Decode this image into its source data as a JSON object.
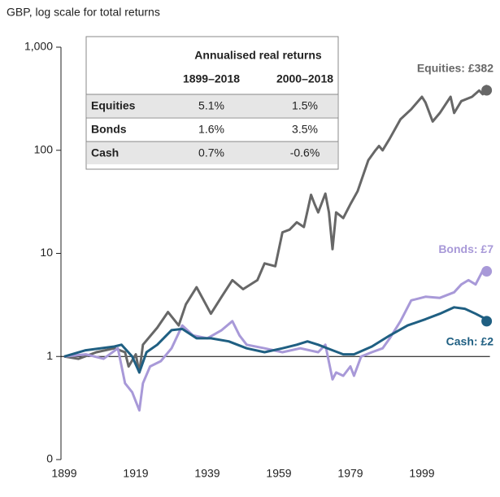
{
  "chart_data": {
    "type": "line",
    "ylabel": "GBP, log scale for total returns",
    "log_scale": true,
    "xlim": [
      1899,
      2018
    ],
    "xticks": [
      1899,
      1919,
      1939,
      1959,
      1979,
      1999
    ],
    "ylim": [
      0.1,
      1000
    ],
    "yticks": [
      {
        "value": 0.1,
        "label": "0"
      },
      1,
      10,
      100,
      {
        "value": 1000,
        "label": "1,000"
      }
    ],
    "hline": 1,
    "series": [
      {
        "name": "Equities",
        "color": "#676767",
        "x": [
          1899,
          1903,
          1908,
          1913,
          1916,
          1917,
          1919,
          1920,
          1921,
          1925,
          1928,
          1931,
          1933,
          1936,
          1938,
          1940,
          1943,
          1946,
          1949,
          1953,
          1955,
          1958,
          1960,
          1962,
          1964,
          1966,
          1968,
          1969,
          1970,
          1972,
          1973,
          1974,
          1975,
          1977,
          1979,
          1981,
          1984,
          1986,
          1987,
          1988,
          1990,
          1993,
          1996,
          1999,
          2000,
          2002,
          2004,
          2007,
          2008,
          2010,
          2013,
          2015,
          2016,
          2017,
          2018
        ],
        "values": [
          1,
          0.95,
          1.1,
          1.2,
          1.1,
          0.8,
          1.05,
          0.7,
          1.3,
          1.9,
          2.7,
          2.0,
          3.2,
          4.7,
          3.5,
          2.6,
          3.8,
          5.5,
          4.5,
          5.5,
          8.0,
          7.5,
          16,
          17,
          20,
          18,
          37,
          30,
          25,
          38,
          25,
          11,
          25,
          22,
          30,
          40,
          80,
          100,
          110,
          100,
          130,
          200,
          250,
          330,
          290,
          190,
          230,
          330,
          230,
          300,
          330,
          380,
          350,
          420,
          382
        ]
      },
      {
        "name": "Bonds",
        "color": "#a899d8",
        "x": [
          1899,
          1905,
          1910,
          1914,
          1916,
          1918,
          1920,
          1921,
          1923,
          1926,
          1929,
          1932,
          1935,
          1939,
          1943,
          1946,
          1948,
          1950,
          1955,
          1960,
          1965,
          1970,
          1972,
          1974,
          1975,
          1977,
          1979,
          1980,
          1982,
          1985,
          1988,
          1990,
          1993,
          1996,
          2000,
          2004,
          2008,
          2010,
          2012,
          2014,
          2016,
          2018
        ],
        "values": [
          1,
          1.05,
          0.95,
          1.2,
          0.55,
          0.45,
          0.3,
          0.55,
          0.8,
          0.9,
          1.2,
          2.0,
          1.6,
          1.5,
          1.8,
          2.2,
          1.6,
          1.3,
          1.2,
          1.1,
          1.2,
          1.1,
          1.3,
          0.6,
          0.7,
          0.65,
          0.8,
          0.65,
          1.0,
          1.1,
          1.2,
          1.5,
          2.2,
          3.5,
          3.8,
          3.7,
          4.2,
          5.0,
          5.5,
          5.0,
          6.8,
          6.7
        ]
      },
      {
        "name": "Cash",
        "color": "#1f5f82",
        "x": [
          1899,
          1905,
          1913,
          1915,
          1918,
          1920,
          1922,
          1925,
          1929,
          1932,
          1936,
          1940,
          1945,
          1950,
          1955,
          1960,
          1964,
          1967,
          1970,
          1974,
          1977,
          1980,
          1985,
          1990,
          1995,
          2000,
          2004,
          2008,
          2011,
          2014,
          2018
        ],
        "values": [
          1,
          1.15,
          1.25,
          1.3,
          1.0,
          0.7,
          1.1,
          1.3,
          1.8,
          1.85,
          1.5,
          1.5,
          1.4,
          1.2,
          1.1,
          1.2,
          1.3,
          1.4,
          1.3,
          1.15,
          1.05,
          1.05,
          1.25,
          1.6,
          2.0,
          2.3,
          2.6,
          3.0,
          2.9,
          2.6,
          2.2
        ]
      }
    ],
    "annotations": [
      "Equities: £382",
      "Bonds: £7",
      "Cash: £2"
    ],
    "table": {
      "title": "Annualised real returns",
      "columns": [
        "1899–2018",
        "2000–2018"
      ],
      "rows": [
        [
          "Equities",
          "5.1%",
          "1.5%"
        ],
        [
          "Bonds",
          "1.6%",
          "3.5%"
        ],
        [
          "Cash",
          "0.7%",
          "-0.6%"
        ]
      ]
    }
  }
}
